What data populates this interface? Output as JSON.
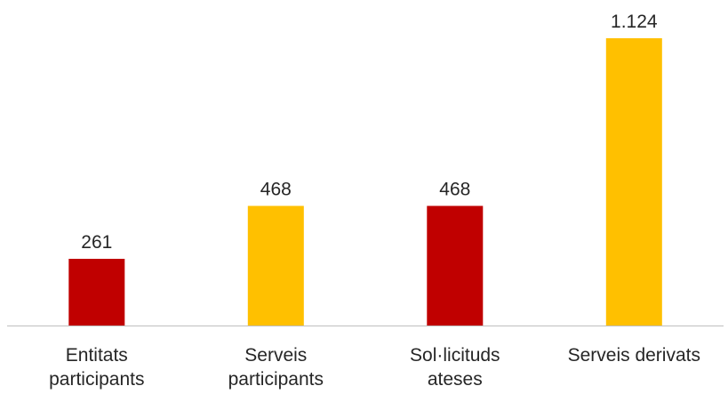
{
  "chart_data": {
    "type": "bar",
    "categories": [
      [
        "Entitats",
        "participants"
      ],
      [
        "Serveis",
        "participants"
      ],
      [
        "Sol·licituds",
        "ateses"
      ],
      [
        "Serveis derivats"
      ]
    ],
    "values": [
      261,
      468,
      468,
      1124
    ],
    "value_labels": [
      "261",
      "468",
      "468",
      "1.124"
    ],
    "bar_colors": [
      "#C00000",
      "#FFC000",
      "#C00000",
      "#FFC000"
    ],
    "axis_color": "#BFBFBF",
    "text_color": "#262626",
    "ylim": [
      0,
      1124
    ],
    "grid": false,
    "legend": "none",
    "title": "",
    "xlabel": "",
    "ylabel": ""
  }
}
